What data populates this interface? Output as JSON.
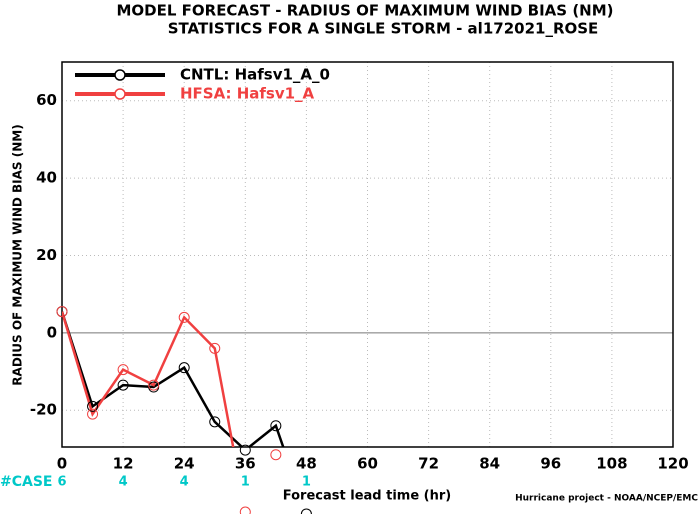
{
  "chart_data": {
    "type": "line",
    "title": [
      "MODEL FORECAST - RADIUS OF MAXIMUM WIND BIAS (NM)",
      "STATISTICS FOR A SINGLE STORM - al172021_ROSE"
    ],
    "x_label": "Forecast lead time (hr)",
    "y_label": "RADIUS OF MAXIMUM WIND BIAS (NM)",
    "footer": "Hurricane project - NOAA/NCEP/EMC",
    "x": [
      0,
      6,
      12,
      18,
      24,
      30,
      36,
      42,
      48
    ],
    "series": [
      {
        "name": "CNTL: Hafsv1_A_0",
        "color": "#000000",
        "values": [
          5.5,
          -19,
          -13.5,
          -14,
          -9,
          -23,
          -30.3,
          -24,
          -46.8
        ]
      },
      {
        "name": "HFSA: Hafsv1_A",
        "color": "#f04040",
        "values": [
          5.5,
          -21,
          -9.5,
          -13.5,
          4,
          -4,
          -46.3,
          -31.5,
          null
        ]
      }
    ],
    "cases": {
      "label": "#CASE",
      "x": [
        0,
        12,
        24,
        36,
        48
      ],
      "counts": [
        6,
        4,
        4,
        1,
        1
      ],
      "color": "#00c8c8"
    },
    "xlim": [
      0,
      120
    ],
    "xticks": [
      0,
      12,
      24,
      36,
      48,
      60,
      72,
      84,
      96,
      108,
      120
    ],
    "ylim": [
      -29.5,
      70
    ],
    "yticks": [
      -20,
      0,
      20,
      40,
      60
    ],
    "grid": true,
    "legend": "top-left"
  }
}
